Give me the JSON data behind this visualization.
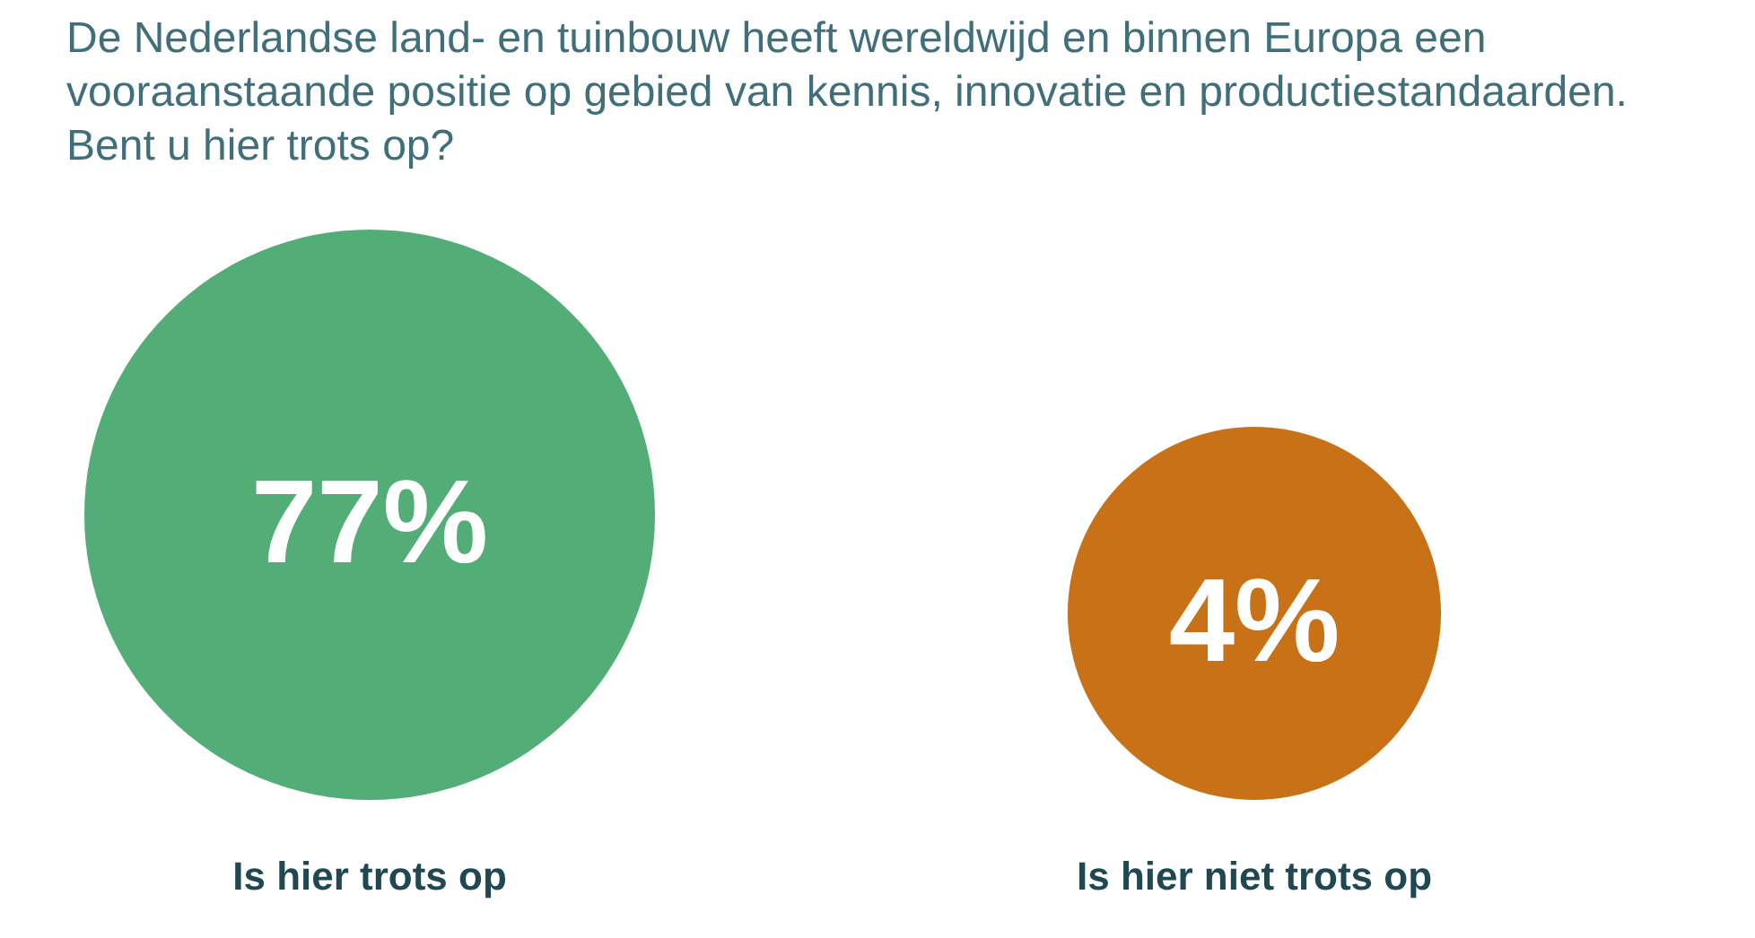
{
  "chart_data": {
    "type": "other",
    "title": "De Nederlandse land- en tuinbouw heeft wereldwijd en binnen Europa een vooraanstaande positie op gebied van kennis, innovatie en productiestandaarden. Bent u hier trots op?",
    "categories": [
      "Is hier trots op",
      "Is hier niet trots op"
    ],
    "values": [
      77,
      4
    ],
    "value_labels": [
      "77%",
      "4%"
    ],
    "colors": [
      "#52ae76",
      "#c87116"
    ]
  }
}
